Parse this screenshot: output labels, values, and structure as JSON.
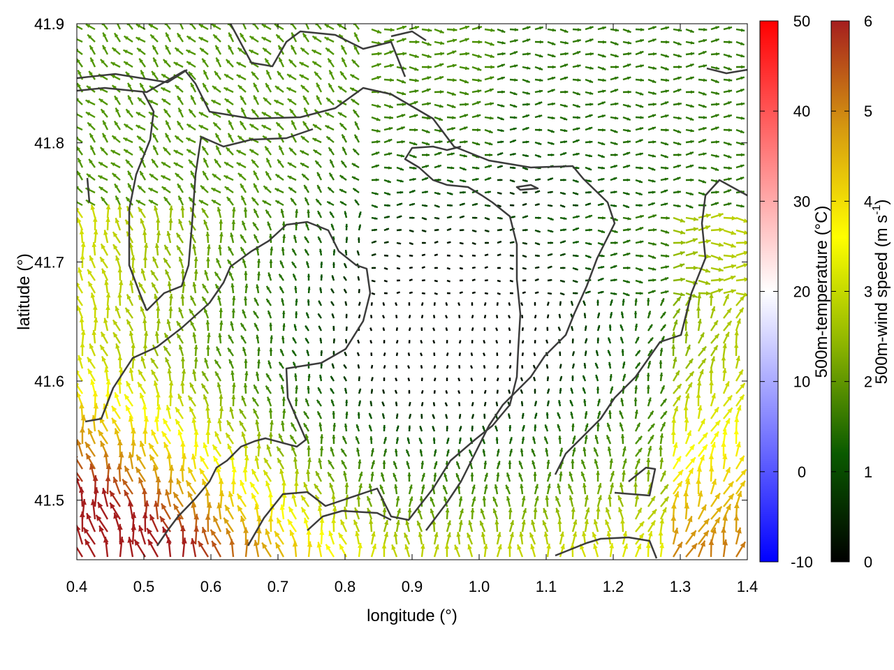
{
  "chart_data": {
    "type": "vector-field",
    "title": "",
    "xlabel": "longitude (°)",
    "ylabel": "latitude (°)",
    "xlim": [
      0.4,
      1.4
    ],
    "ylim": [
      41.45,
      41.9
    ],
    "xticks": [
      "0.4",
      "0.5",
      "0.6",
      "0.7",
      "0.8",
      "0.9",
      "1.0",
      "1.1",
      "1.2",
      "1.3",
      "1.4"
    ],
    "yticks": [
      "41.5",
      "41.6",
      "41.7",
      "41.8",
      "41.9"
    ],
    "grid": false,
    "colorbars": [
      {
        "label": "500m-temperature (°C)",
        "range": [
          -10,
          50
        ],
        "ticks": [
          "-10",
          "0",
          "10",
          "20",
          "30",
          "40",
          "50"
        ],
        "colors": [
          "#0000ff",
          "#ffffff",
          "#ff0000"
        ]
      },
      {
        "label_main": "500m-wind speed (m s",
        "label_sup": "-1",
        "label_end": ")",
        "range": [
          0,
          6
        ],
        "ticks": [
          "0",
          "1",
          "2",
          "3",
          "4",
          "5",
          "6"
        ],
        "colors": [
          "#000000",
          "#0a5a00",
          "#8cb400",
          "#ffff00",
          "#d69a10",
          "#a51e1e"
        ]
      }
    ]
  }
}
